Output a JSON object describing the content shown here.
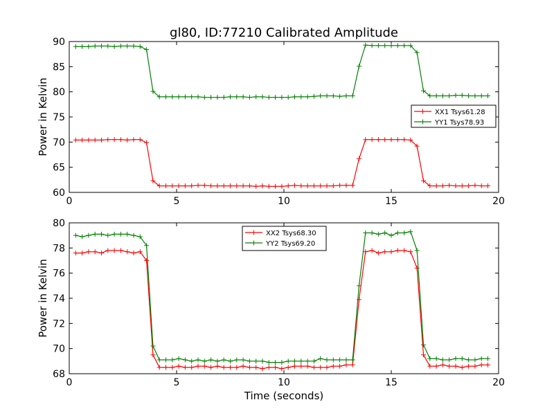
{
  "title": "gl80, ID:77210 Calibrated Amplitude",
  "chart_data": [
    {
      "type": "line",
      "title": "gl80, ID:77210 Calibrated Amplitude",
      "xlabel": "",
      "ylabel": "Power in Kelvin",
      "xlim": [
        0,
        20
      ],
      "ylim": [
        60,
        90
      ],
      "xticks": [
        0,
        5,
        10,
        15,
        20
      ],
      "yticks": [
        60,
        65,
        70,
        75,
        80,
        85,
        90
      ],
      "legend_position": "center-right",
      "grid": false,
      "x": [
        0.3,
        0.6,
        0.9,
        1.2,
        1.5,
        1.8,
        2.1,
        2.4,
        2.7,
        3.0,
        3.3,
        3.6,
        3.9,
        4.2,
        4.5,
        4.8,
        5.1,
        5.4,
        5.7,
        6.0,
        6.3,
        6.6,
        6.9,
        7.2,
        7.5,
        7.8,
        8.1,
        8.4,
        8.7,
        9.0,
        9.3,
        9.6,
        9.9,
        10.2,
        10.5,
        10.8,
        11.1,
        11.4,
        11.7,
        12.0,
        12.3,
        12.6,
        12.9,
        13.2,
        13.5,
        13.8,
        14.1,
        14.4,
        14.7,
        15.0,
        15.3,
        15.6,
        15.9,
        16.2,
        16.5,
        16.8,
        17.1,
        17.4,
        17.7,
        18.0,
        18.3,
        18.6,
        18.9,
        19.2,
        19.5
      ],
      "series": [
        {
          "name": "XX1 Tsys61.28",
          "color": "#ff0000",
          "values": [
            70.4,
            70.4,
            70.4,
            70.4,
            70.4,
            70.5,
            70.5,
            70.5,
            70.4,
            70.5,
            70.5,
            69.9,
            62.3,
            61.3,
            61.3,
            61.3,
            61.3,
            61.3,
            61.3,
            61.4,
            61.4,
            61.3,
            61.3,
            61.3,
            61.3,
            61.3,
            61.3,
            61.3,
            61.2,
            61.3,
            61.2,
            61.2,
            61.2,
            61.3,
            61.4,
            61.3,
            61.3,
            61.3,
            61.3,
            61.3,
            61.3,
            61.4,
            61.4,
            61.4,
            66.7,
            70.5,
            70.5,
            70.5,
            70.5,
            70.5,
            70.5,
            70.5,
            70.4,
            69.2,
            62.3,
            61.3,
            61.3,
            61.3,
            61.4,
            61.3,
            61.3,
            61.3,
            61.4,
            61.3,
            61.3
          ]
        },
        {
          "name": "YY1 Tsys78.93",
          "color": "#008000",
          "values": [
            89.0,
            89.0,
            89.0,
            89.1,
            89.1,
            89.1,
            89.0,
            89.1,
            89.1,
            89.1,
            89.0,
            88.4,
            80.1,
            79.0,
            79.0,
            79.0,
            79.0,
            79.0,
            79.0,
            79.0,
            78.9,
            78.9,
            78.9,
            78.9,
            79.0,
            79.0,
            79.0,
            78.9,
            79.0,
            79.0,
            78.9,
            78.9,
            78.9,
            78.9,
            79.0,
            79.0,
            79.0,
            79.1,
            79.2,
            79.2,
            79.2,
            79.1,
            79.2,
            79.2,
            85.1,
            89.3,
            89.2,
            89.2,
            89.2,
            89.2,
            89.2,
            89.2,
            89.2,
            87.8,
            80.2,
            79.2,
            79.2,
            79.2,
            79.2,
            79.3,
            79.3,
            79.2,
            79.2,
            79.2,
            79.2
          ]
        }
      ]
    },
    {
      "type": "line",
      "title": "",
      "xlabel": "Time (seconds)",
      "ylabel": "Power in Kelvin",
      "xlim": [
        0,
        20
      ],
      "ylim": [
        68,
        80
      ],
      "xticks": [
        0,
        5,
        10,
        15,
        20
      ],
      "yticks": [
        68,
        70,
        72,
        74,
        76,
        78,
        80
      ],
      "legend_position": "top-center",
      "grid": false,
      "x": [
        0.3,
        0.6,
        0.9,
        1.2,
        1.5,
        1.8,
        2.1,
        2.4,
        2.7,
        3.0,
        3.3,
        3.6,
        3.9,
        4.2,
        4.5,
        4.8,
        5.1,
        5.4,
        5.7,
        6.0,
        6.3,
        6.6,
        6.9,
        7.2,
        7.5,
        7.8,
        8.1,
        8.4,
        8.7,
        9.0,
        9.3,
        9.6,
        9.9,
        10.2,
        10.5,
        10.8,
        11.1,
        11.4,
        11.7,
        12.0,
        12.3,
        12.6,
        12.9,
        13.2,
        13.5,
        13.8,
        14.1,
        14.4,
        14.7,
        15.0,
        15.3,
        15.6,
        15.9,
        16.2,
        16.5,
        16.8,
        17.1,
        17.4,
        17.7,
        18.0,
        18.3,
        18.6,
        18.9,
        19.2,
        19.5
      ],
      "series": [
        {
          "name": "XX2 Tsys68.30",
          "color": "#ff0000",
          "values": [
            77.6,
            77.6,
            77.7,
            77.7,
            77.6,
            77.8,
            77.8,
            77.8,
            77.7,
            77.6,
            77.7,
            77.0,
            69.5,
            68.5,
            68.5,
            68.5,
            68.6,
            68.5,
            68.5,
            68.6,
            68.6,
            68.5,
            68.6,
            68.5,
            68.5,
            68.5,
            68.6,
            68.5,
            68.5,
            68.4,
            68.5,
            68.5,
            68.4,
            68.5,
            68.6,
            68.6,
            68.6,
            68.5,
            68.5,
            68.5,
            68.6,
            68.6,
            68.7,
            68.7,
            73.9,
            77.7,
            77.8,
            77.6,
            77.7,
            77.7,
            77.8,
            77.8,
            77.7,
            76.4,
            69.5,
            68.6,
            68.6,
            68.7,
            68.6,
            68.6,
            68.5,
            68.6,
            68.6,
            68.7,
            68.7
          ]
        },
        {
          "name": "YY2 Tsys69.20",
          "color": "#008000",
          "values": [
            79.0,
            78.9,
            79.0,
            79.1,
            79.1,
            79.0,
            79.1,
            79.1,
            79.1,
            79.0,
            78.9,
            78.2,
            70.2,
            69.1,
            69.1,
            69.1,
            69.2,
            69.1,
            69.0,
            69.1,
            69.0,
            69.1,
            69.0,
            69.1,
            69.0,
            69.1,
            69.1,
            69.0,
            69.0,
            69.0,
            68.9,
            68.9,
            68.9,
            69.0,
            69.0,
            69.0,
            69.0,
            69.0,
            69.2,
            69.1,
            69.1,
            69.1,
            69.1,
            69.1,
            75.0,
            79.2,
            79.2,
            79.1,
            79.2,
            79.0,
            79.2,
            79.2,
            79.3,
            77.8,
            70.3,
            69.2,
            69.2,
            69.1,
            69.1,
            69.2,
            69.2,
            69.1,
            69.1,
            69.2,
            69.2
          ]
        }
      ]
    }
  ]
}
